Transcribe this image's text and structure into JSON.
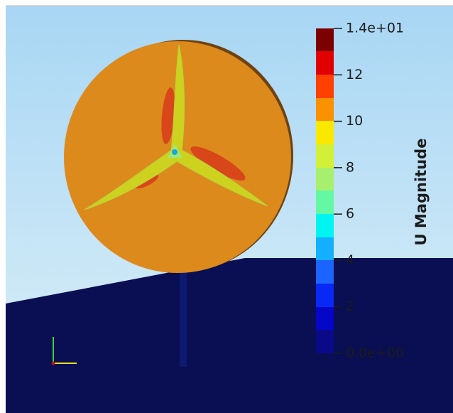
{
  "colorbar": {
    "title": "U Magnitude",
    "ticks": [
      "1.4e+01",
      "12",
      "10",
      "8",
      "6",
      "4",
      "2",
      "0.0e+00"
    ]
  }
}
